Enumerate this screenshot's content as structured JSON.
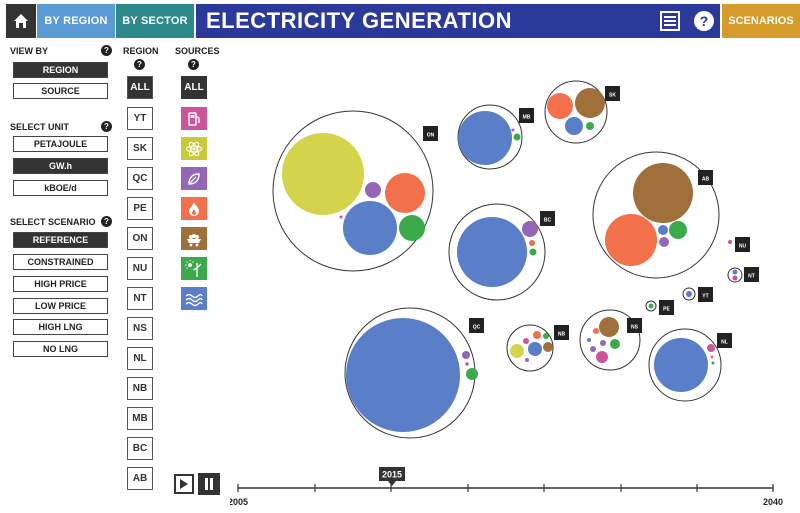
{
  "header": {
    "tabs": [
      {
        "label": "BY REGION"
      },
      {
        "label": "BY SECTOR"
      }
    ],
    "title": "ELECTRICITY GENERATION",
    "scenarios_button": "SCENARIOS",
    "icons": [
      "home-icon",
      "list-icon",
      "help-icon"
    ]
  },
  "view_by": {
    "label": "VIEW BY",
    "options": [
      "REGION",
      "SOURCE"
    ],
    "selected": "REGION"
  },
  "unit": {
    "label": "SELECT UNIT",
    "options": [
      "PETAJOULE",
      "GW.h",
      "kBOE/d"
    ],
    "selected": "GW.h"
  },
  "scenario": {
    "label": "SELECT SCENARIO",
    "options": [
      "REFERENCE",
      "CONSTRAINED",
      "HIGH PRICE",
      "LOW PRICE",
      "HIGH LNG",
      "NO LNG"
    ],
    "selected": "REFERENCE"
  },
  "regions": {
    "label": "REGION",
    "items": [
      "ALL",
      "YT",
      "SK",
      "QC",
      "PE",
      "ON",
      "NU",
      "NT",
      "NS",
      "NL",
      "NB",
      "MB",
      "BC",
      "AB"
    ]
  },
  "sources": {
    "label": "SOURCES",
    "all": "ALL",
    "icons": [
      "oil-icon",
      "nuclear-icon",
      "biomass-icon",
      "gas-icon",
      "coal-icon",
      "wind-solar-icon",
      "hydro-icon"
    ],
    "colors": {
      "oil": "#cc5599",
      "nuclear": "#c9c93a",
      "biomass": "#9466b8",
      "gas": "#f2704a",
      "coal": "#a0703a",
      "wind_solar": "#3aaa4a",
      "hydro": "#5a7ec8"
    }
  },
  "bubbles": [
    {
      "label": "ON"
    },
    {
      "label": "MB"
    },
    {
      "label": "SK"
    },
    {
      "label": "AB"
    },
    {
      "label": "BC"
    },
    {
      "label": "NU"
    },
    {
      "label": "NT"
    },
    {
      "label": "YT"
    },
    {
      "label": "PE"
    },
    {
      "label": "QC"
    },
    {
      "label": "NB"
    },
    {
      "label": "NS"
    },
    {
      "label": "NL"
    }
  ],
  "timeline": {
    "start": "2005",
    "end": "2040",
    "current": "2015"
  }
}
